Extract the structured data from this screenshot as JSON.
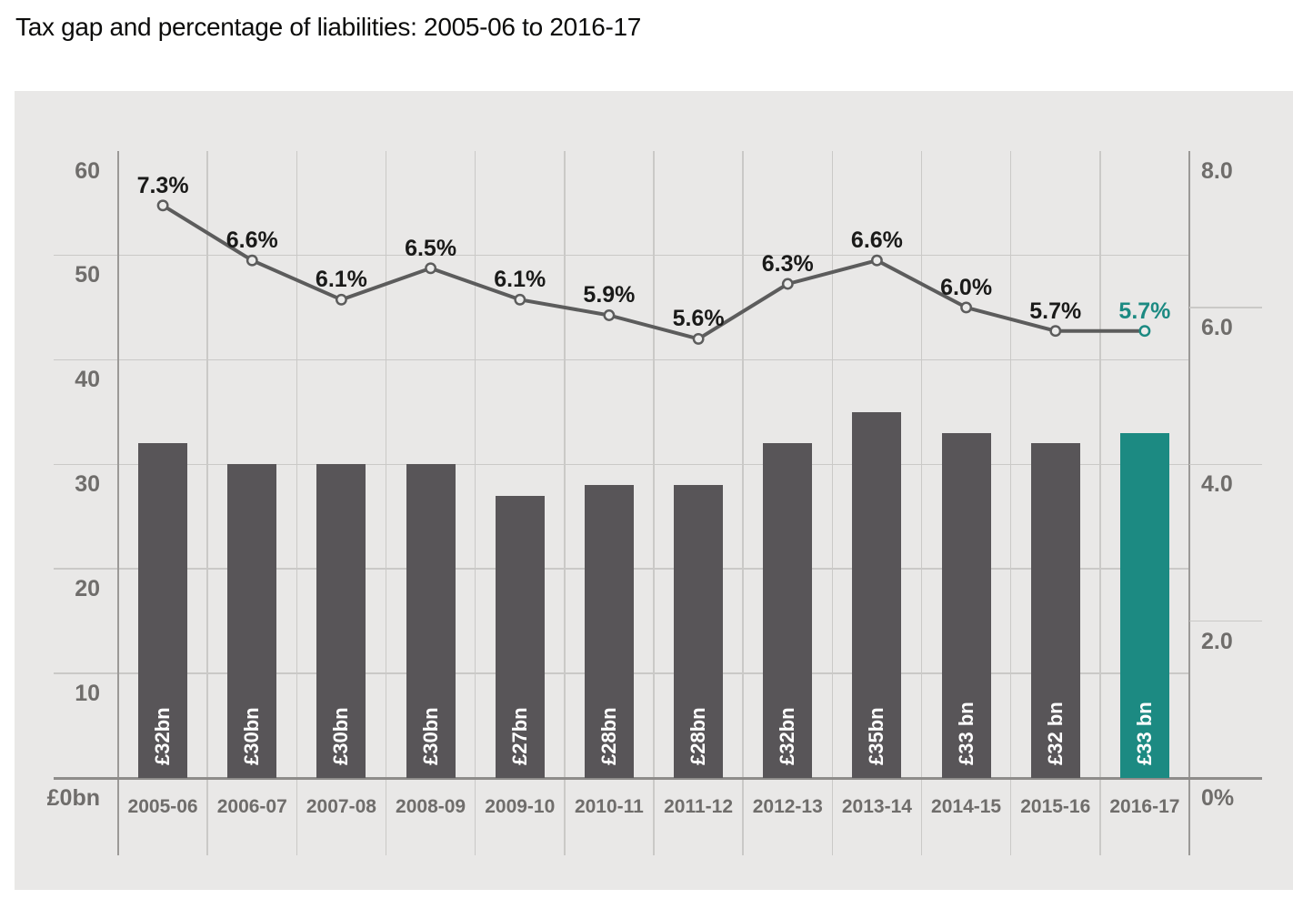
{
  "title": "Tax gap and percentage of liabilities: 2005-06 to 2016-17",
  "colors": {
    "panel_bg": "#e9e8e7",
    "grid": "#cac9c7",
    "axis_line": "#9b9997",
    "baseline": "#8e8c8a",
    "bar": "#585558",
    "bar_highlight": "#1c8a82",
    "line": "#5c5c5c",
    "marker_fill": "#ececeb",
    "pct_label": "#1a1a19",
    "pct_label_highlight": "#1c8a82",
    "axis_text": "#6f6d6b",
    "title_text": "#0c0c0b",
    "bar_value_text": "#ffffff"
  },
  "chart_data": {
    "type": "bar",
    "subtype": "bar+line combo",
    "categories": [
      "2005-06",
      "2006-07",
      "2007-08",
      "2008-09",
      "2009-10",
      "2010-11",
      "2011-12",
      "2012-13",
      "2013-14",
      "2014-15",
      "2015-16",
      "2016-17"
    ],
    "series": [
      {
        "name": "Tax gap (£bn)",
        "type": "bar",
        "axis": "left",
        "values": [
          32,
          30,
          30,
          30,
          27,
          28,
          28,
          32,
          35,
          33,
          32,
          33
        ],
        "labels": [
          "£32bn",
          "£30bn",
          "£30bn",
          "£30bn",
          "£27bn",
          "£28bn",
          "£28bn",
          "£32bn",
          "£35bn",
          "£33 bn",
          "£32 bn",
          "£33 bn"
        ]
      },
      {
        "name": "Percentage of liabilities",
        "type": "line",
        "axis": "right",
        "values": [
          7.3,
          6.6,
          6.1,
          6.5,
          6.1,
          5.9,
          5.6,
          6.3,
          6.6,
          6.0,
          5.7,
          5.7
        ],
        "labels": [
          "7.3%",
          "6.6%",
          "6.1%",
          "6.5%",
          "6.1%",
          "5.9%",
          "5.6%",
          "6.3%",
          "6.6%",
          "6.0%",
          "5.7%",
          "5.7%"
        ]
      }
    ],
    "left_axis": {
      "max": 60,
      "ticks": [
        {
          "label": "60",
          "value": 60
        },
        {
          "label": "50",
          "value": 50
        },
        {
          "label": "40",
          "value": 40
        },
        {
          "label": "30",
          "value": 30
        },
        {
          "label": "20",
          "value": 20
        },
        {
          "label": "10",
          "value": 10
        }
      ],
      "zero_label": "£0bn"
    },
    "right_axis": {
      "max": 8,
      "ticks": [
        {
          "label": "8.0",
          "value": 8
        },
        {
          "label": "6.0",
          "value": 6
        },
        {
          "label": "4.0",
          "value": 4
        },
        {
          "label": "2.0",
          "value": 2
        }
      ],
      "zero_label": "0%"
    },
    "highlight_category": "2016-17",
    "highlight_index": 11,
    "grid": "on",
    "legend": "none"
  }
}
